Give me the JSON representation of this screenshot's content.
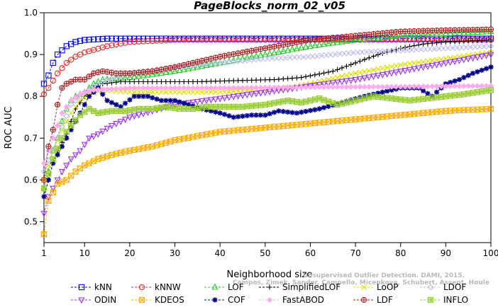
{
  "chart_data": {
    "type": "line",
    "title": "PageBlocks_norm_02_v05",
    "xlabel": "Neighborhood size",
    "ylabel": "ROC AUC",
    "xlim": [
      1,
      100
    ],
    "ylim": [
      0.45,
      1.0
    ],
    "xticks": [
      1,
      10,
      20,
      30,
      40,
      50,
      60,
      70,
      80,
      90,
      100
    ],
    "yticks": [
      0.5,
      0.6,
      0.7,
      0.8,
      0.9,
      1.0
    ],
    "ytick_labels": [
      "0.5",
      "0.6",
      "0.7",
      "0.8",
      "0.9",
      "1.0"
    ],
    "grid": false,
    "legend_position": "bottom",
    "watermark": [
      "Campos, Zimek, Sander, Campello, Micenkova, Schubert, Assent, Houle",
      "Unsupervised Outlier Detection. DAMI, 2015."
    ],
    "series": [
      {
        "name": "kNN",
        "color": "#0000ff",
        "marker": "square",
        "knots": [
          [
            1,
            0.83
          ],
          [
            2,
            0.85
          ],
          [
            3,
            0.88
          ],
          [
            4,
            0.9
          ],
          [
            5,
            0.91
          ],
          [
            6,
            0.92
          ],
          [
            8,
            0.93
          ],
          [
            10,
            0.935
          ],
          [
            15,
            0.938
          ],
          [
            100,
            0.938
          ]
        ]
      },
      {
        "name": "kNNW",
        "color": "#ee2222",
        "marker": "circle",
        "knots": [
          [
            1,
            0.805
          ],
          [
            2,
            0.82
          ],
          [
            4,
            0.855
          ],
          [
            6,
            0.88
          ],
          [
            8,
            0.895
          ],
          [
            10,
            0.905
          ],
          [
            15,
            0.92
          ],
          [
            20,
            0.93
          ],
          [
            30,
            0.935
          ],
          [
            50,
            0.935
          ],
          [
            100,
            0.935
          ]
        ]
      },
      {
        "name": "LOF",
        "color": "#22cc22",
        "marker": "triangle-up",
        "knots": [
          [
            1,
            0.58
          ],
          [
            2,
            0.62
          ],
          [
            3,
            0.67
          ],
          [
            4,
            0.7
          ],
          [
            5,
            0.74
          ],
          [
            6,
            0.77
          ],
          [
            7,
            0.79
          ],
          [
            8,
            0.8
          ],
          [
            10,
            0.81
          ],
          [
            12,
            0.83
          ],
          [
            14,
            0.84
          ],
          [
            20,
            0.845
          ],
          [
            30,
            0.86
          ],
          [
            40,
            0.88
          ],
          [
            50,
            0.9
          ],
          [
            60,
            0.92
          ],
          [
            70,
            0.935
          ],
          [
            80,
            0.945
          ],
          [
            90,
            0.95
          ],
          [
            100,
            0.955
          ]
        ]
      },
      {
        "name": "SimplifiedLOF",
        "color": "#000000",
        "marker": "plus",
        "knots": [
          [
            1,
            0.56
          ],
          [
            2,
            0.6
          ],
          [
            3,
            0.64
          ],
          [
            4,
            0.67
          ],
          [
            5,
            0.69
          ],
          [
            6,
            0.71
          ],
          [
            7,
            0.74
          ],
          [
            8,
            0.77
          ],
          [
            10,
            0.8
          ],
          [
            12,
            0.82
          ],
          [
            14,
            0.83
          ],
          [
            18,
            0.835
          ],
          [
            25,
            0.835
          ],
          [
            35,
            0.835
          ],
          [
            45,
            0.838
          ],
          [
            52,
            0.84
          ],
          [
            58,
            0.845
          ],
          [
            65,
            0.86
          ],
          [
            70,
            0.88
          ],
          [
            75,
            0.9
          ],
          [
            80,
            0.915
          ],
          [
            85,
            0.925
          ],
          [
            90,
            0.93
          ],
          [
            100,
            0.935
          ]
        ]
      },
      {
        "name": "LoOP",
        "color": "#dddd00",
        "marker": "x",
        "knots": [
          [
            1,
            0.6
          ],
          [
            3,
            0.67
          ],
          [
            5,
            0.72
          ],
          [
            7,
            0.76
          ],
          [
            9,
            0.79
          ],
          [
            11,
            0.805
          ],
          [
            14,
            0.815
          ],
          [
            20,
            0.81
          ],
          [
            30,
            0.81
          ],
          [
            40,
            0.81
          ],
          [
            50,
            0.815
          ],
          [
            55,
            0.82
          ],
          [
            60,
            0.83
          ],
          [
            70,
            0.855
          ],
          [
            80,
            0.875
          ],
          [
            90,
            0.89
          ],
          [
            100,
            0.905
          ]
        ]
      },
      {
        "name": "LDOF",
        "color": "#bbbbee",
        "marker": "diamond",
        "knots": [
          [
            1,
            0.62
          ],
          [
            4,
            0.7
          ],
          [
            7,
            0.78
          ],
          [
            10,
            0.81
          ],
          [
            14,
            0.835
          ],
          [
            20,
            0.855
          ],
          [
            30,
            0.87
          ],
          [
            40,
            0.88
          ],
          [
            50,
            0.89
          ],
          [
            60,
            0.895
          ],
          [
            70,
            0.905
          ],
          [
            80,
            0.91
          ],
          [
            90,
            0.915
          ],
          [
            100,
            0.92
          ]
        ]
      },
      {
        "name": "ODIN",
        "color": "#9933ee",
        "marker": "triangle-down",
        "knots": [
          [
            1,
            0.52
          ],
          [
            2,
            0.56
          ],
          [
            3,
            0.58
          ],
          [
            5,
            0.62
          ],
          [
            7,
            0.65
          ],
          [
            9,
            0.67
          ],
          [
            11,
            0.7
          ],
          [
            13,
            0.71
          ],
          [
            16,
            0.73
          ],
          [
            20,
            0.75
          ],
          [
            25,
            0.765
          ],
          [
            30,
            0.78
          ],
          [
            40,
            0.795
          ],
          [
            50,
            0.81
          ],
          [
            60,
            0.825
          ],
          [
            70,
            0.84
          ],
          [
            80,
            0.86
          ],
          [
            90,
            0.88
          ],
          [
            100,
            0.9
          ]
        ]
      },
      {
        "name": "KDEOS",
        "color": "#ffaa00",
        "marker": "square-x",
        "knots": [
          [
            1,
            0.47
          ],
          [
            2,
            0.55
          ],
          [
            3,
            0.57
          ],
          [
            4,
            0.59
          ],
          [
            6,
            0.6
          ],
          [
            8,
            0.62
          ],
          [
            10,
            0.635
          ],
          [
            13,
            0.65
          ],
          [
            16,
            0.66
          ],
          [
            20,
            0.67
          ],
          [
            25,
            0.68
          ],
          [
            30,
            0.695
          ],
          [
            35,
            0.705
          ],
          [
            40,
            0.715
          ],
          [
            50,
            0.725
          ],
          [
            60,
            0.735
          ],
          [
            70,
            0.745
          ],
          [
            80,
            0.755
          ],
          [
            90,
            0.765
          ],
          [
            100,
            0.77
          ]
        ]
      },
      {
        "name": "COF",
        "color": "#000088",
        "marker": "asterisk",
        "knots": [
          [
            1,
            0.56
          ],
          [
            3,
            0.64
          ],
          [
            5,
            0.68
          ],
          [
            7,
            0.72
          ],
          [
            9,
            0.76
          ],
          [
            11,
            0.8
          ],
          [
            13,
            0.82
          ],
          [
            15,
            0.79
          ],
          [
            18,
            0.775
          ],
          [
            21,
            0.8
          ],
          [
            24,
            0.8
          ],
          [
            27,
            0.79
          ],
          [
            30,
            0.79
          ],
          [
            33,
            0.78
          ],
          [
            36,
            0.77
          ],
          [
            40,
            0.76
          ],
          [
            43,
            0.75
          ],
          [
            47,
            0.755
          ],
          [
            50,
            0.755
          ],
          [
            53,
            0.765
          ],
          [
            57,
            0.76
          ],
          [
            62,
            0.77
          ],
          [
            67,
            0.785
          ],
          [
            72,
            0.8
          ],
          [
            76,
            0.81
          ],
          [
            80,
            0.82
          ],
          [
            84,
            0.82
          ],
          [
            87,
            0.8
          ],
          [
            90,
            0.83
          ],
          [
            93,
            0.84
          ],
          [
            96,
            0.855
          ],
          [
            100,
            0.87
          ]
        ]
      },
      {
        "name": "FastABOD",
        "color": "#ffaaee",
        "marker": "diamond-filled",
        "knots": [
          [
            1,
            0.64
          ],
          [
            3,
            0.7
          ],
          [
            5,
            0.76
          ],
          [
            7,
            0.79
          ],
          [
            9,
            0.805
          ],
          [
            12,
            0.815
          ],
          [
            20,
            0.82
          ],
          [
            40,
            0.82
          ],
          [
            60,
            0.822
          ],
          [
            80,
            0.823
          ],
          [
            100,
            0.825
          ]
        ]
      },
      {
        "name": "LDF",
        "color": "#aa2222",
        "marker": "circle-plus",
        "knots": [
          [
            1,
            0.6
          ],
          [
            2,
            0.68
          ],
          [
            3,
            0.72
          ],
          [
            4,
            0.78
          ],
          [
            5,
            0.82
          ],
          [
            6,
            0.83
          ],
          [
            8,
            0.84
          ],
          [
            10,
            0.84
          ],
          [
            12,
            0.855
          ],
          [
            14,
            0.86
          ],
          [
            17,
            0.855
          ],
          [
            20,
            0.855
          ],
          [
            25,
            0.86
          ],
          [
            30,
            0.87
          ],
          [
            40,
            0.895
          ],
          [
            50,
            0.915
          ],
          [
            60,
            0.935
          ],
          [
            70,
            0.945
          ],
          [
            80,
            0.955
          ],
          [
            90,
            0.958
          ],
          [
            100,
            0.96
          ]
        ]
      },
      {
        "name": "INFLO",
        "color": "#99cc33",
        "marker": "star-box",
        "knots": [
          [
            1,
            0.58
          ],
          [
            3,
            0.65
          ],
          [
            5,
            0.7
          ],
          [
            7,
            0.73
          ],
          [
            9,
            0.755
          ],
          [
            11,
            0.77
          ],
          [
            13,
            0.76
          ],
          [
            16,
            0.765
          ],
          [
            19,
            0.765
          ],
          [
            22,
            0.77
          ],
          [
            25,
            0.77
          ],
          [
            28,
            0.775
          ],
          [
            31,
            0.77
          ],
          [
            34,
            0.77
          ],
          [
            37,
            0.775
          ],
          [
            40,
            0.775
          ],
          [
            45,
            0.775
          ],
          [
            50,
            0.78
          ],
          [
            55,
            0.79
          ],
          [
            58,
            0.785
          ],
          [
            62,
            0.795
          ],
          [
            66,
            0.78
          ],
          [
            70,
            0.79
          ],
          [
            74,
            0.8
          ],
          [
            78,
            0.795
          ],
          [
            82,
            0.79
          ],
          [
            86,
            0.795
          ],
          [
            90,
            0.8
          ],
          [
            94,
            0.805
          ],
          [
            100,
            0.815
          ]
        ]
      }
    ]
  }
}
